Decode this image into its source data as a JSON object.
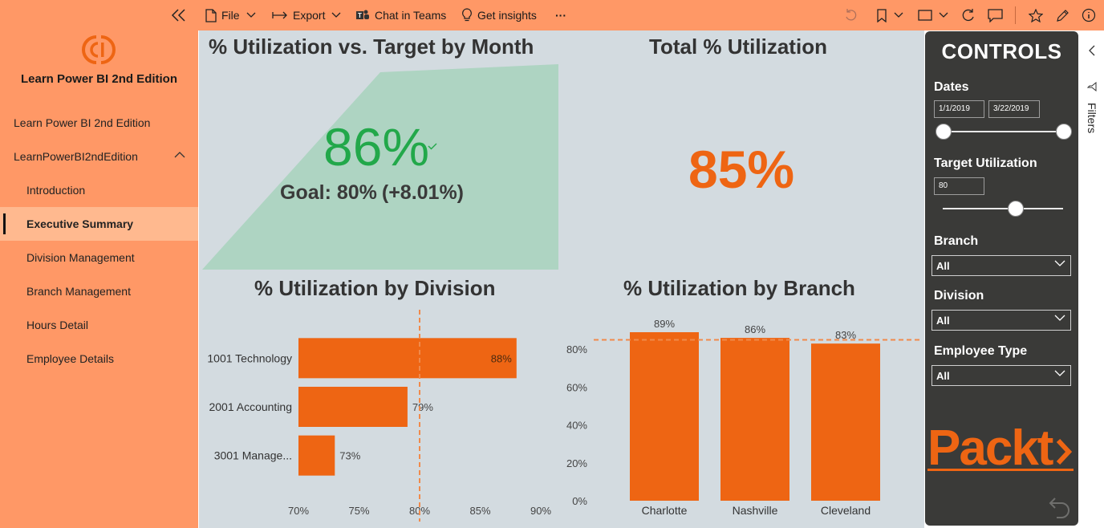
{
  "toolbar": {
    "collapse_icon": "double-chevron-left-icon",
    "file_label": "File",
    "export_label": "Export",
    "teams_label": "Chat in Teams",
    "insights_label": "Get insights",
    "more_label": "···"
  },
  "nav": {
    "app_title": "Learn Power BI 2nd Edition",
    "items": [
      {
        "label": "Learn Power BI 2nd Edition"
      },
      {
        "label": "LearnPowerBI2ndEdition"
      },
      {
        "label": "Introduction"
      },
      {
        "label": "Executive Summary"
      },
      {
        "label": "Division Management"
      },
      {
        "label": "Branch Management"
      },
      {
        "label": "Hours Detail"
      },
      {
        "label": "Employee Details"
      }
    ],
    "active_item": "Executive Summary"
  },
  "kpi": {
    "title": "% Utilization vs. Target by Month",
    "value": "86%",
    "goal_text": "Goal: 80%",
    "delta_text": "(+8.01%)"
  },
  "card": {
    "title": "Total % Utilization",
    "value": "85%"
  },
  "division_chart": {
    "title": "% Utilization by Division"
  },
  "branch_chart": {
    "title": "% Utilization by Branch"
  },
  "chart_data": [
    {
      "type": "bar",
      "orientation": "horizontal",
      "title": "% Utilization by Division",
      "categories": [
        "1001 Technology",
        "2001 Accounting",
        "3001 Manage..."
      ],
      "values": [
        88,
        79,
        73
      ],
      "data_labels": [
        "88%",
        "79%",
        "73%"
      ],
      "xlim": [
        70,
        90
      ],
      "x_ticks": [
        "70%",
        "75%",
        "80%",
        "85%",
        "90%"
      ],
      "reference_line": 80,
      "color": "#ee6513"
    },
    {
      "type": "bar",
      "orientation": "vertical",
      "title": "% Utilization by Branch",
      "categories": [
        "Charlotte",
        "Nashville",
        "Cleveland"
      ],
      "values": [
        89,
        86,
        83
      ],
      "data_labels": [
        "89%",
        "86%",
        "83%"
      ],
      "ylim": [
        0,
        89
      ],
      "y_ticks": [
        "0%",
        "20%",
        "40%",
        "60%",
        "80%"
      ],
      "reference_line": 85,
      "color": "#ee6513"
    }
  ],
  "controls": {
    "title": "CONTROLS",
    "dates_label": "Dates",
    "date_start": "1/1/2019",
    "date_end": "3/22/2019",
    "target_label": "Target Utilization",
    "target_value": "80",
    "branch_label": "Branch",
    "branch_value": "All",
    "division_label": "Division",
    "division_value": "All",
    "employee_type_label": "Employee Type",
    "employee_type_value": "All",
    "logo_text": "Packt"
  },
  "filters_label": "Filters",
  "colors": {
    "toolbar_bg": "#ff9866",
    "nav_active_bg": "#ffb98f",
    "canvas_bg": "#d3dbe0",
    "accent": "#ee6513",
    "kpi_green": "#22a84a",
    "kpi_fill": "#aed4c2",
    "panel_bg": "#3a3a38"
  }
}
